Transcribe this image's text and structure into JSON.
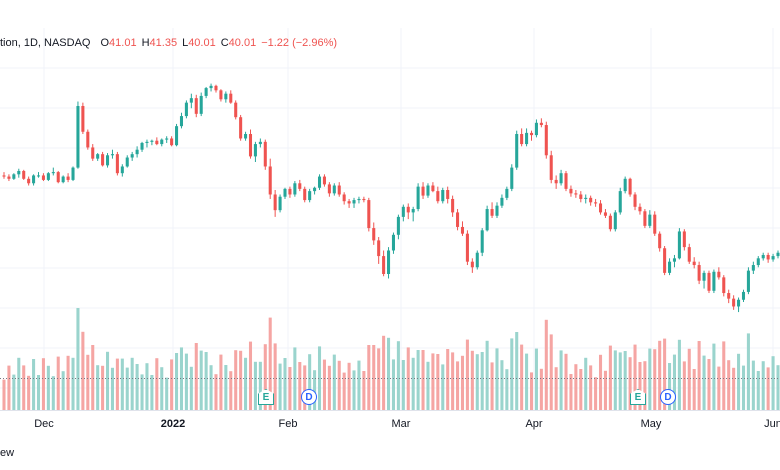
{
  "legend": {
    "title": "tion, 1D, NASDAQ",
    "open_label": "O",
    "open": "41.01",
    "high_label": "H",
    "high": "41.35",
    "low_label": "L",
    "low": "40.01",
    "close_label": "C",
    "close": "40.01",
    "change": "−1.22 (−2.96%)"
  },
  "footer": {
    "text": "ew"
  },
  "markers": [
    {
      "type": "earnings",
      "label": "E",
      "icon": "earnings-icon"
    },
    {
      "type": "dividend",
      "label": "D",
      "icon": "dividend-icon"
    },
    {
      "type": "earnings",
      "label": "E",
      "icon": "earnings-icon"
    },
    {
      "type": "dividend",
      "label": "D",
      "icon": "dividend-icon"
    }
  ],
  "colors": {
    "up": "#26a69a",
    "down": "#ef5350",
    "vol_up": "#9ad4cd",
    "vol_down": "#f5a5a3",
    "grid": "#f0f3fa"
  },
  "chart_data": {
    "type": "candlestick",
    "x_tick_labels": [
      "Dec",
      "2022",
      "Feb",
      "Mar",
      "Apr",
      "May",
      "Jun"
    ],
    "ohlc_approx": [
      [
        43.3,
        43.6,
        43.0,
        43.2
      ],
      [
        43.2,
        43.4,
        42.8,
        43.0
      ],
      [
        43.0,
        43.5,
        42.9,
        43.4
      ],
      [
        43.4,
        43.9,
        43.1,
        43.7
      ],
      [
        43.7,
        43.8,
        42.9,
        43.0
      ],
      [
        43.0,
        43.2,
        42.4,
        42.6
      ],
      [
        42.6,
        43.4,
        42.4,
        43.3
      ],
      [
        43.3,
        43.6,
        43.1,
        43.3
      ],
      [
        43.3,
        43.5,
        42.8,
        42.9
      ],
      [
        42.9,
        43.6,
        42.8,
        43.5
      ],
      [
        43.5,
        44.0,
        43.3,
        43.6
      ],
      [
        43.6,
        43.7,
        42.6,
        42.7
      ],
      [
        42.7,
        43.3,
        42.6,
        43.2
      ],
      [
        43.2,
        43.5,
        42.7,
        42.9
      ],
      [
        42.9,
        44.1,
        42.8,
        44.0
      ],
      [
        44.0,
        49.9,
        43.9,
        49.5
      ],
      [
        49.5,
        49.8,
        47.0,
        47.2
      ],
      [
        47.2,
        47.4,
        45.6,
        45.8
      ],
      [
        45.8,
        46.1,
        44.6,
        44.8
      ],
      [
        44.8,
        45.3,
        44.6,
        45.2
      ],
      [
        45.2,
        45.4,
        44.1,
        44.2
      ],
      [
        44.2,
        45.3,
        44.0,
        45.1
      ],
      [
        45.1,
        45.6,
        44.8,
        45.2
      ],
      [
        45.2,
        45.4,
        43.3,
        43.5
      ],
      [
        43.5,
        44.3,
        43.2,
        44.1
      ],
      [
        44.1,
        45.1,
        44.0,
        44.9
      ],
      [
        44.9,
        45.4,
        44.6,
        45.2
      ],
      [
        45.2,
        45.9,
        44.9,
        45.6
      ],
      [
        45.6,
        46.3,
        45.4,
        46.2
      ],
      [
        46.2,
        46.5,
        45.8,
        46.3
      ],
      [
        46.3,
        46.5,
        46.0,
        46.4
      ],
      [
        46.4,
        46.7,
        46.0,
        46.1
      ],
      [
        46.1,
        46.6,
        45.9,
        46.5
      ],
      [
        46.5,
        46.8,
        46.2,
        46.6
      ],
      [
        46.6,
        46.8,
        45.9,
        46.0
      ],
      [
        46.0,
        47.9,
        45.9,
        47.7
      ],
      [
        47.7,
        48.9,
        47.5,
        48.6
      ],
      [
        48.6,
        50.0,
        48.4,
        49.8
      ],
      [
        49.8,
        50.6,
        49.3,
        50.2
      ],
      [
        50.2,
        50.5,
        48.5,
        48.8
      ],
      [
        48.8,
        50.7,
        48.6,
        50.4
      ],
      [
        50.4,
        51.2,
        50.2,
        51.1
      ],
      [
        51.1,
        51.5,
        50.8,
        51.3
      ],
      [
        51.3,
        51.4,
        50.7,
        50.9
      ],
      [
        50.9,
        51.0,
        49.9,
        50.1
      ],
      [
        50.1,
        50.8,
        49.8,
        50.6
      ],
      [
        50.6,
        50.9,
        49.7,
        49.8
      ],
      [
        49.8,
        50.0,
        48.3,
        48.5
      ],
      [
        48.5,
        48.7,
        46.4,
        46.6
      ],
      [
        46.6,
        47.2,
        46.4,
        47.0
      ],
      [
        47.0,
        47.4,
        44.8,
        45.0
      ],
      [
        45.0,
        46.3,
        44.5,
        46.1
      ],
      [
        46.1,
        46.6,
        45.8,
        46.3
      ],
      [
        46.3,
        46.5,
        43.8,
        44.1
      ],
      [
        44.1,
        44.8,
        41.2,
        41.6
      ],
      [
        41.6,
        42.0,
        39.6,
        40.2
      ],
      [
        40.2,
        41.6,
        40.0,
        41.4
      ],
      [
        41.4,
        42.2,
        41.2,
        42.1
      ],
      [
        42.1,
        42.3,
        41.3,
        41.6
      ],
      [
        41.6,
        42.8,
        41.4,
        42.6
      ],
      [
        42.6,
        42.9,
        41.9,
        42.1
      ],
      [
        42.1,
        42.3,
        40.9,
        41.1
      ],
      [
        41.1,
        42.1,
        40.9,
        41.9
      ],
      [
        41.9,
        42.3,
        41.6,
        42.2
      ],
      [
        42.2,
        43.4,
        42.0,
        43.2
      ],
      [
        43.2,
        43.4,
        42.3,
        42.5
      ],
      [
        42.5,
        42.7,
        41.4,
        41.7
      ],
      [
        41.7,
        42.6,
        41.5,
        42.4
      ],
      [
        42.4,
        42.7,
        41.4,
        41.6
      ],
      [
        41.6,
        41.8,
        40.7,
        41.0
      ],
      [
        41.0,
        41.2,
        40.4,
        40.8
      ],
      [
        40.8,
        41.3,
        40.4,
        41.1
      ],
      [
        41.1,
        41.4,
        40.8,
        41.2
      ],
      [
        41.2,
        41.4,
        40.9,
        41.1
      ],
      [
        41.1,
        41.3,
        38.3,
        38.6
      ],
      [
        38.6,
        39.1,
        37.1,
        37.5
      ],
      [
        37.5,
        37.8,
        35.4,
        36.1
      ],
      [
        36.1,
        36.6,
        34.3,
        34.5
      ],
      [
        34.5,
        36.9,
        34.1,
        36.6
      ],
      [
        36.6,
        38.2,
        36.3,
        38.0
      ],
      [
        38.0,
        39.8,
        37.6,
        39.6
      ],
      [
        39.6,
        40.7,
        39.2,
        40.5
      ],
      [
        40.5,
        40.8,
        39.4,
        40.0
      ],
      [
        40.0,
        40.5,
        39.2,
        40.3
      ],
      [
        40.3,
        42.6,
        40.1,
        42.3
      ],
      [
        42.3,
        42.7,
        41.2,
        41.5
      ],
      [
        41.5,
        42.6,
        41.3,
        42.4
      ],
      [
        42.4,
        42.7,
        41.8,
        41.9
      ],
      [
        41.9,
        42.3,
        40.8,
        41.0
      ],
      [
        41.0,
        42.2,
        40.8,
        42.0
      ],
      [
        42.0,
        42.3,
        40.8,
        41.2
      ],
      [
        41.2,
        41.5,
        39.6,
        40.0
      ],
      [
        40.0,
        40.3,
        38.4,
        38.7
      ],
      [
        38.7,
        39.2,
        37.9,
        38.1
      ],
      [
        38.1,
        38.4,
        35.3,
        35.6
      ],
      [
        35.6,
        35.9,
        34.6,
        35.1
      ],
      [
        35.1,
        36.6,
        34.9,
        36.4
      ],
      [
        36.4,
        38.6,
        36.1,
        38.4
      ],
      [
        38.4,
        40.6,
        38.3,
        40.3
      ],
      [
        40.3,
        40.9,
        39.5,
        39.7
      ],
      [
        39.7,
        40.9,
        39.5,
        40.6
      ],
      [
        40.6,
        41.6,
        40.4,
        41.3
      ],
      [
        41.3,
        42.3,
        41.1,
        42.1
      ],
      [
        42.1,
        44.3,
        41.9,
        44.0
      ],
      [
        44.0,
        47.3,
        43.8,
        47.0
      ],
      [
        47.0,
        47.5,
        45.9,
        46.1
      ],
      [
        46.1,
        47.5,
        45.9,
        47.1
      ],
      [
        47.1,
        47.3,
        46.4,
        46.9
      ],
      [
        46.9,
        48.3,
        46.7,
        48.0
      ],
      [
        48.0,
        48.4,
        47.6,
        47.8
      ],
      [
        47.8,
        48.1,
        44.8,
        45.1
      ],
      [
        45.1,
        45.5,
        42.6,
        42.9
      ],
      [
        42.9,
        43.3,
        42.1,
        42.6
      ],
      [
        42.6,
        43.8,
        42.4,
        43.5
      ],
      [
        43.5,
        43.7,
        41.9,
        42.1
      ],
      [
        42.1,
        42.4,
        41.4,
        41.7
      ],
      [
        41.7,
        42.0,
        41.3,
        41.6
      ],
      [
        41.6,
        41.9,
        40.9,
        41.2
      ],
      [
        41.2,
        41.6,
        40.8,
        41.3
      ],
      [
        41.3,
        41.5,
        40.6,
        40.9
      ],
      [
        40.9,
        41.2,
        40.5,
        40.8
      ],
      [
        40.8,
        41.1,
        39.8,
        40.0
      ],
      [
        40.0,
        40.3,
        39.5,
        39.7
      ],
      [
        39.7,
        39.9,
        38.3,
        38.5
      ],
      [
        38.5,
        40.2,
        38.3,
        40.0
      ],
      [
        40.0,
        42.2,
        39.8,
        41.9
      ],
      [
        41.9,
        43.2,
        41.7,
        43.0
      ],
      [
        43.0,
        43.1,
        41.4,
        41.6
      ],
      [
        41.6,
        41.8,
        40.2,
        40.5
      ],
      [
        40.5,
        40.8,
        39.8,
        40.1
      ],
      [
        40.1,
        40.3,
        38.6,
        38.8
      ],
      [
        38.8,
        40.2,
        38.6,
        39.8
      ],
      [
        39.8,
        40.1,
        37.9,
        38.1
      ],
      [
        38.1,
        38.3,
        36.5,
        36.8
      ],
      [
        36.8,
        37.0,
        34.4,
        34.6
      ],
      [
        34.6,
        35.9,
        34.4,
        35.6
      ],
      [
        35.6,
        36.2,
        35.1,
        35.9
      ],
      [
        35.9,
        38.6,
        35.8,
        38.3
      ],
      [
        38.3,
        38.5,
        36.6,
        36.9
      ],
      [
        36.9,
        37.2,
        35.4,
        35.6
      ],
      [
        35.6,
        36.0,
        35.0,
        35.3
      ],
      [
        35.3,
        35.6,
        33.6,
        33.9
      ],
      [
        33.9,
        34.8,
        33.2,
        34.6
      ],
      [
        34.6,
        34.8,
        32.8,
        33.0
      ],
      [
        33.0,
        34.9,
        32.8,
        34.7
      ],
      [
        34.7,
        35.1,
        34.0,
        34.2
      ],
      [
        34.2,
        34.4,
        32.5,
        32.8
      ],
      [
        32.8,
        33.1,
        31.9,
        32.3
      ],
      [
        32.3,
        32.6,
        31.3,
        31.6
      ],
      [
        31.6,
        32.4,
        31.1,
        32.2
      ],
      [
        32.2,
        33.1,
        32.0,
        32.9
      ],
      [
        32.9,
        35.1,
        32.7,
        34.8
      ],
      [
        34.8,
        35.6,
        34.5,
        35.3
      ],
      [
        35.3,
        36.1,
        35.1,
        35.9
      ],
      [
        35.9,
        36.4,
        35.7,
        36.2
      ],
      [
        36.2,
        36.4,
        35.5,
        35.8
      ],
      [
        35.8,
        36.3,
        35.6,
        36.1
      ],
      [
        36.1,
        36.6,
        35.9,
        36.4
      ]
    ],
    "volume_up_down": "green = up day, red = down day",
    "ylim": [
      29.5,
      54.5
    ]
  }
}
